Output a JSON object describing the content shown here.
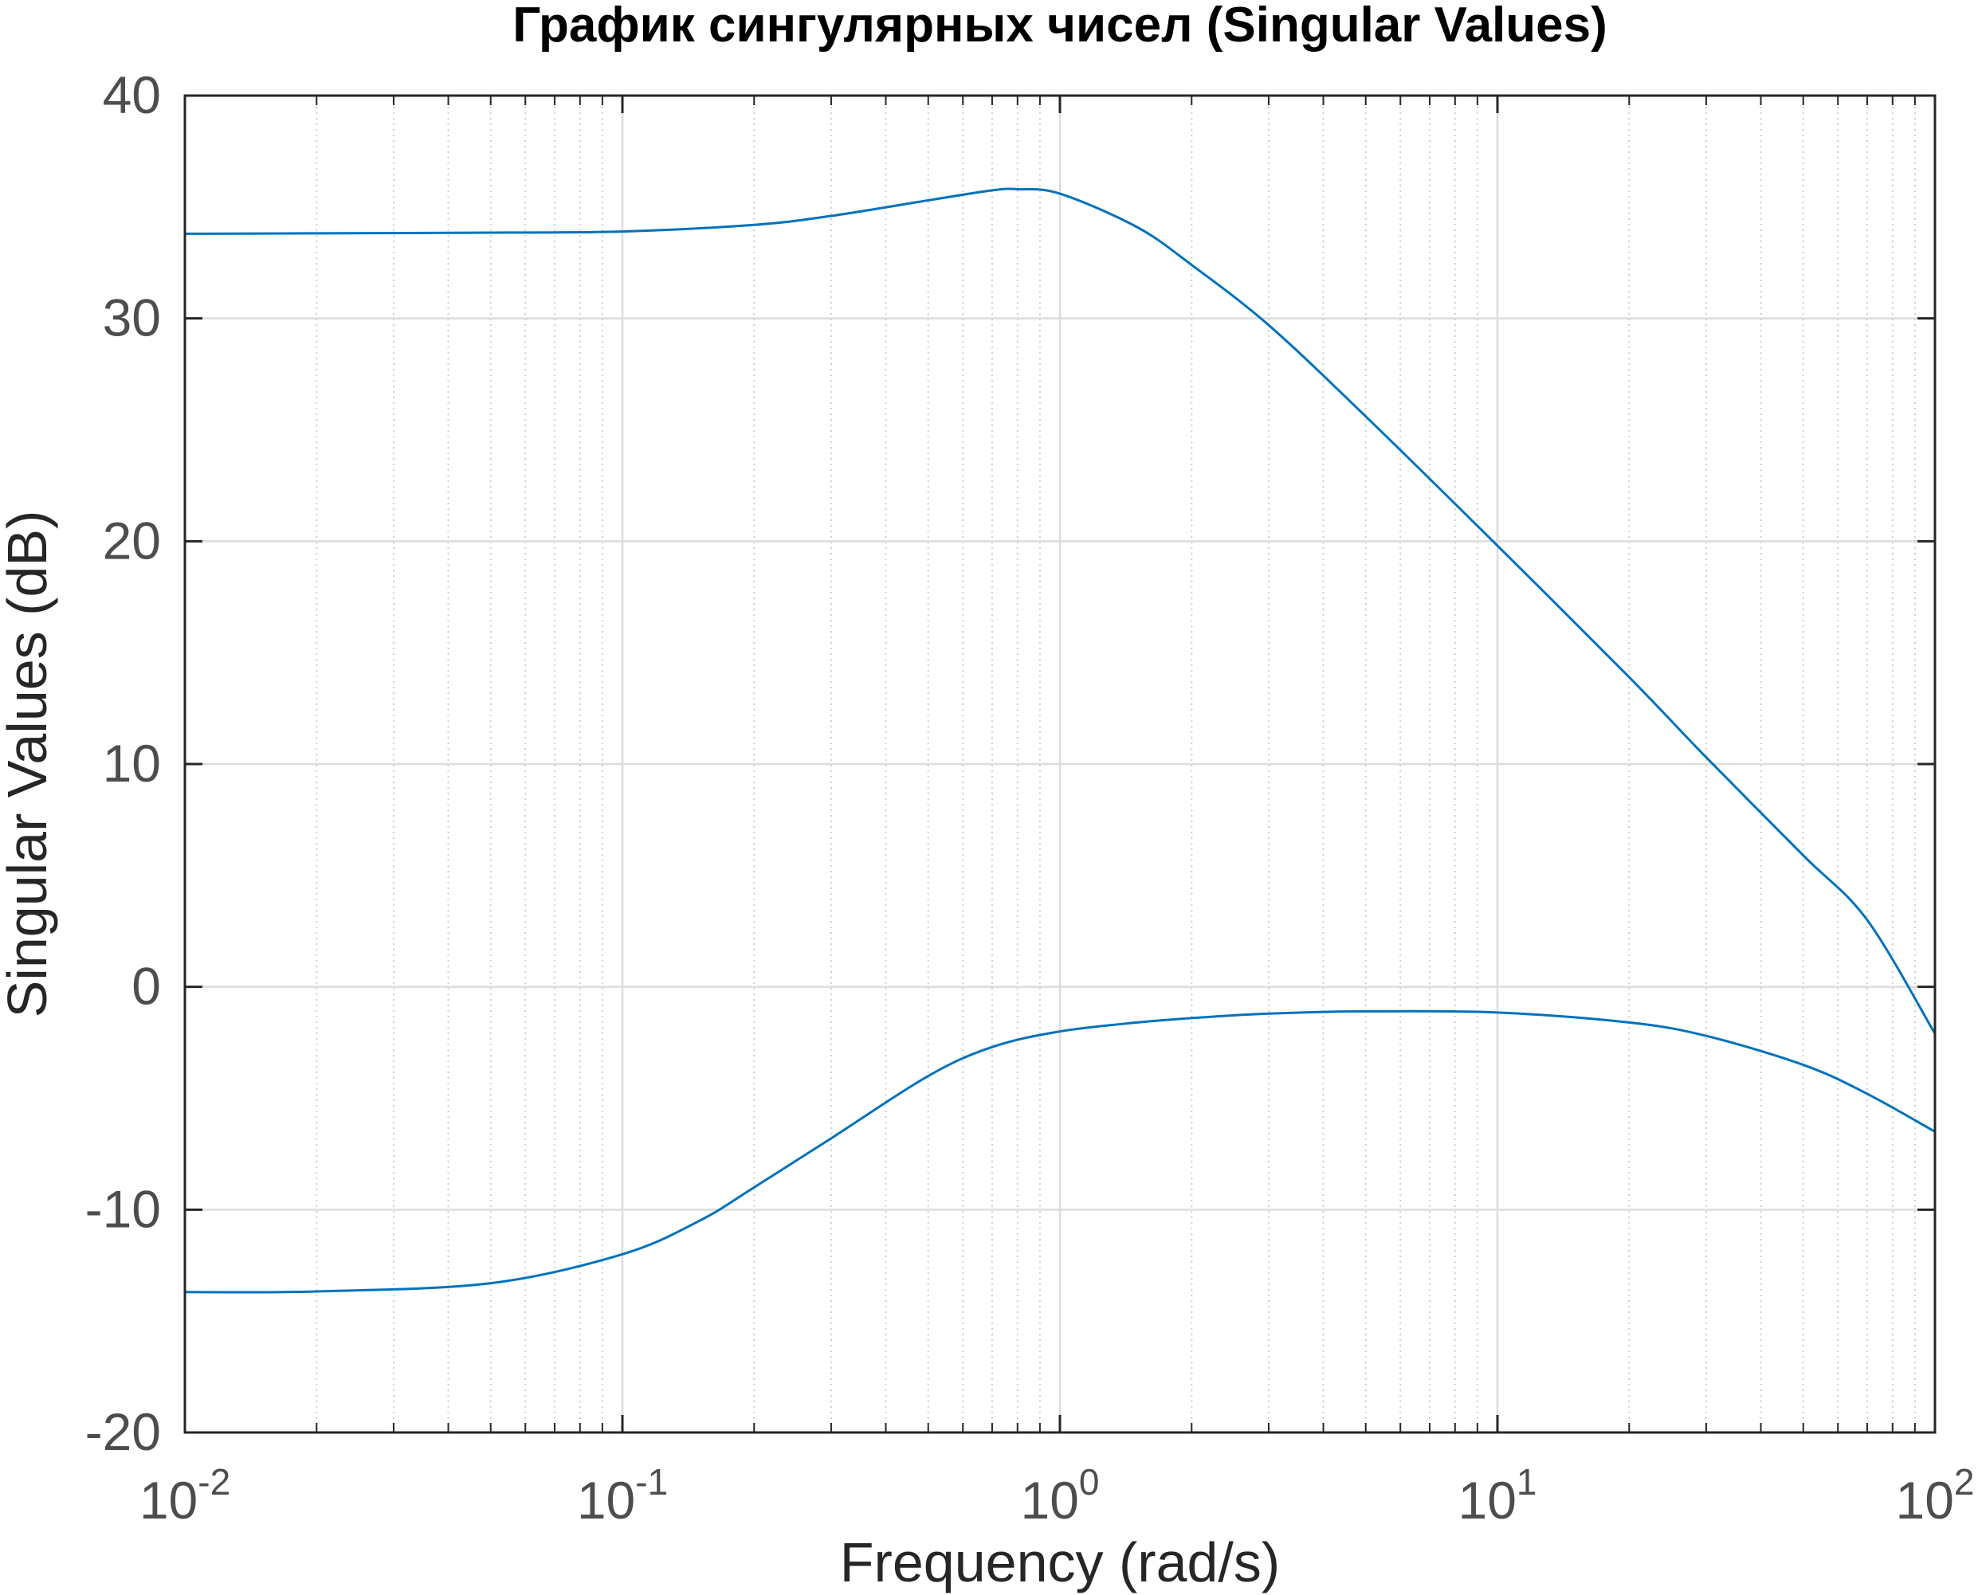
{
  "chart_data": {
    "type": "line",
    "title": "График сингулярных чисел (Singular Values)",
    "xlabel": "Frequency (rad/s)",
    "ylabel": "Singular Values (dB)",
    "xscale": "log",
    "xlim": [
      0.01,
      100
    ],
    "ylim": [
      -20,
      40
    ],
    "xticks": [
      {
        "value": 0.01,
        "base": "10",
        "exp": "-2"
      },
      {
        "value": 0.1,
        "base": "10",
        "exp": "-1"
      },
      {
        "value": 1,
        "base": "10",
        "exp": "0"
      },
      {
        "value": 10,
        "base": "10",
        "exp": "1"
      },
      {
        "value": 100,
        "base": "10",
        "exp": "2"
      }
    ],
    "yticks": [
      {
        "value": 40,
        "label": "40"
      },
      {
        "value": 30,
        "label": "30"
      },
      {
        "value": 20,
        "label": "20"
      },
      {
        "value": 10,
        "label": "10"
      },
      {
        "value": 0,
        "label": "0"
      },
      {
        "value": -10,
        "label": "-10"
      },
      {
        "value": -20,
        "label": "-20"
      }
    ],
    "grid": true,
    "minor_grid": true,
    "line_color": "#0072bd",
    "series": [
      {
        "x": [
          0.01,
          0.02,
          0.05,
          0.1,
          0.2,
          0.3,
          0.5,
          0.7,
          0.8,
          1.0,
          1.5,
          2,
          3,
          5,
          10,
          20,
          30,
          50,
          70,
          100
        ],
        "y": [
          33.8,
          33.82,
          33.85,
          33.9,
          34.2,
          34.6,
          35.3,
          35.75,
          35.8,
          35.6,
          34.1,
          32.4,
          29.7,
          25.6,
          19.8,
          13.9,
          10.3,
          5.9,
          3.0,
          -2.1
        ]
      },
      {
        "x": [
          0.01,
          0.02,
          0.05,
          0.1,
          0.15,
          0.2,
          0.3,
          0.5,
          0.7,
          1,
          1.5,
          2,
          3,
          5,
          10,
          20,
          30,
          50,
          70,
          100
        ],
        "y": [
          -13.7,
          -13.67,
          -13.3,
          -12.0,
          -10.5,
          -9.0,
          -6.8,
          -4.0,
          -2.7,
          -2.0,
          -1.6,
          -1.4,
          -1.2,
          -1.1,
          -1.15,
          -1.6,
          -2.2,
          -3.5,
          -4.8,
          -6.5
        ]
      }
    ]
  }
}
